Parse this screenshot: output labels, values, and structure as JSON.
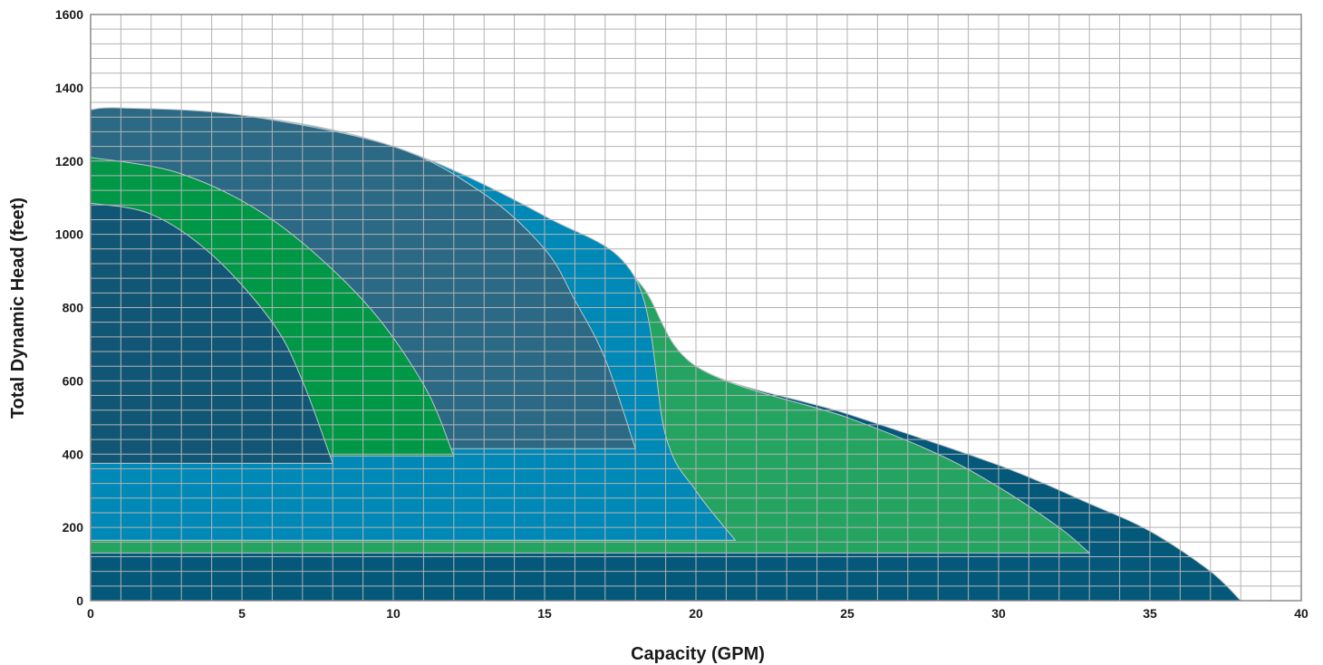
{
  "chart_data": {
    "type": "area",
    "title": "",
    "xlabel": "Capacity (GPM)",
    "ylabel": "Total Dynamic Head (feet)",
    "xlim": [
      0,
      40
    ],
    "ylim": [
      0,
      1600
    ],
    "x_ticks": [
      0,
      5,
      10,
      15,
      20,
      25,
      30,
      35,
      40
    ],
    "y_ticks": [
      0,
      200,
      400,
      600,
      800,
      1000,
      1200,
      1400,
      1600
    ],
    "x_minor_step": 1,
    "y_minor_step": 40,
    "grid": true,
    "legend": "none",
    "regions": [
      {
        "color": "#04587a",
        "bottom": 0,
        "curve": [
          [
            0,
            1340
          ],
          [
            5,
            1325
          ],
          [
            10,
            1240
          ],
          [
            15,
            1050
          ],
          [
            18,
            880
          ],
          [
            20,
            640
          ],
          [
            25,
            510
          ],
          [
            30,
            370
          ],
          [
            33,
            265
          ],
          [
            35,
            190
          ],
          [
            37,
            80
          ],
          [
            38,
            0
          ]
        ]
      },
      {
        "color": "#25a461",
        "bottom": 130,
        "curve": [
          [
            0,
            1340
          ],
          [
            5,
            1325
          ],
          [
            10,
            1240
          ],
          [
            15,
            1050
          ],
          [
            18,
            880
          ],
          [
            20,
            640
          ],
          [
            25,
            500
          ],
          [
            28,
            400
          ],
          [
            30,
            310
          ],
          [
            32,
            200
          ],
          [
            33,
            130
          ]
        ]
      },
      {
        "color": "#0089b6",
        "bottom": 165,
        "curve": [
          [
            0,
            1340
          ],
          [
            5,
            1325
          ],
          [
            10,
            1240
          ],
          [
            15,
            1050
          ],
          [
            18,
            880
          ],
          [
            19,
            450
          ],
          [
            20,
            300
          ],
          [
            21.3,
            165
          ]
        ]
      },
      {
        "color": "#2b6985",
        "bottom": 415,
        "curve": [
          [
            0,
            1340
          ],
          [
            1,
            1345
          ],
          [
            5,
            1325
          ],
          [
            10,
            1240
          ],
          [
            13,
            1110
          ],
          [
            15,
            960
          ],
          [
            16,
            820
          ],
          [
            17,
            660
          ],
          [
            18,
            415
          ]
        ]
      },
      {
        "color": "#009847",
        "bottom": 395,
        "curve": [
          [
            0,
            1210
          ],
          [
            3,
            1165
          ],
          [
            6,
            1040
          ],
          [
            9,
            820
          ],
          [
            11,
            590
          ],
          [
            12,
            395
          ]
        ]
      },
      {
        "color": "#125676",
        "bottom": 375,
        "curve": [
          [
            0,
            1085
          ],
          [
            2,
            1055
          ],
          [
            4,
            945
          ],
          [
            6,
            760
          ],
          [
            7,
            600
          ],
          [
            8,
            375
          ]
        ]
      }
    ]
  }
}
